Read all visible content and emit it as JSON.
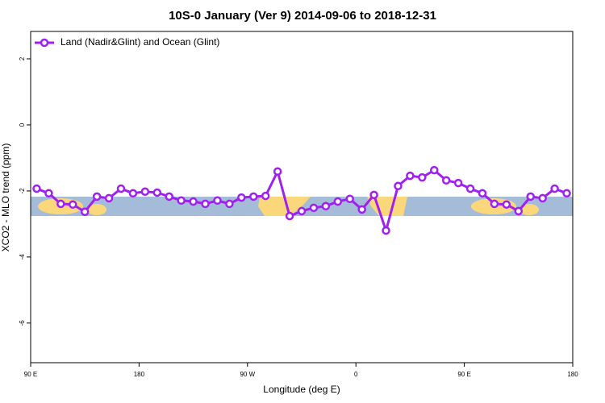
{
  "chart_data": {
    "type": "line",
    "title": "10S-0 January (Ver 9)   2014-09-06 to 2018-12-31",
    "x_label": "Longitude (deg E)",
    "y_label": "XCO2 - MLO trend (ppm)",
    "xlim": [
      90,
      540
    ],
    "xticks": [
      {
        "value": 90,
        "label": "90 E"
      },
      {
        "value": 180,
        "label": "180"
      },
      {
        "value": 270,
        "label": "90 W"
      },
      {
        "value": 360,
        "label": "0"
      },
      {
        "value": 450,
        "label": "90 E"
      },
      {
        "value": 540,
        "label": "180"
      }
    ],
    "ylim": [
      -7.2,
      2.83
    ],
    "yticks": [
      2,
      0,
      -2,
      -4,
      -6
    ],
    "legend_position": "top-left",
    "series": [
      {
        "name": "Land (Nadir&Glint) and Ocean (Glint)",
        "color": "#a020f0",
        "x": [
          95,
          105,
          115,
          125,
          135,
          145,
          155,
          165,
          175,
          185,
          195,
          205,
          215,
          225,
          235,
          245,
          255,
          265,
          275,
          285,
          295,
          305,
          315,
          325,
          335,
          345,
          355,
          365,
          375,
          385,
          395,
          405,
          415,
          425,
          435,
          445,
          455,
          465,
          475,
          485,
          495,
          505,
          515,
          525,
          535
        ],
        "values": [
          -1.93,
          -2.07,
          -2.39,
          -2.41,
          -2.63,
          -2.17,
          -2.22,
          -1.93,
          -2.07,
          -2.02,
          -2.05,
          -2.17,
          -2.29,
          -2.32,
          -2.39,
          -2.29,
          -2.39,
          -2.2,
          -2.17,
          -2.15,
          -1.41,
          -2.76,
          -2.61,
          -2.51,
          -2.46,
          -2.32,
          -2.24,
          -2.56,
          -2.12,
          -3.2,
          -1.85,
          -1.54,
          -1.59,
          -1.37,
          -1.68,
          -1.76,
          -1.93,
          -2.07,
          -2.39,
          -2.41,
          -2.61,
          -2.17,
          -2.22,
          -1.93,
          -2.07
        ]
      }
    ]
  }
}
